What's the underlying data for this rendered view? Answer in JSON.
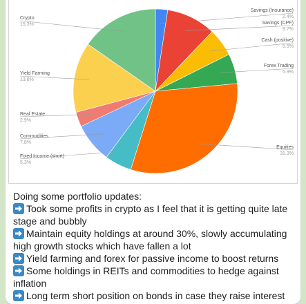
{
  "chart_data": {
    "type": "pie",
    "slices": [
      {
        "label": "Savings (Insurance)",
        "value": 2.4,
        "display": "2.4%",
        "color": "#4285f4"
      },
      {
        "label": "Savings (CPF)",
        "value": 9.7,
        "display": "9.7%",
        "color": "#ea4335"
      },
      {
        "label": "Cash (positive)",
        "value": 5.5,
        "display": "5.5%",
        "color": "#fbbc04"
      },
      {
        "label": "Forex Trading",
        "value": 5.9,
        "display": "5.9%",
        "color": "#34a853"
      },
      {
        "label": "Equities",
        "value": 31.3,
        "display": "31.3%",
        "color": "#ff6d01"
      },
      {
        "label": "Fixed Income (short)",
        "value": 5.3,
        "display": "5.3%",
        "color": "#46bdc6"
      },
      {
        "label": "Commodities",
        "value": 7.8,
        "display": "7.8%",
        "color": "#7baaf7"
      },
      {
        "label": "Real Estate",
        "value": 2.9,
        "display": "2.9%",
        "color": "#f07b72"
      },
      {
        "label": "Yield Farming",
        "value": 13.8,
        "display": "13.8%",
        "color": "#fcd04f"
      },
      {
        "label": "Crypto",
        "value": 15.3,
        "display": "15.3%",
        "color": "#71c287"
      }
    ]
  },
  "message": {
    "intro": "Doing some portfolio updates:",
    "bullets": [
      "Took some profits in crypto as I feel that it is getting quite late stage and bubbly",
      "Maintain equity holdings at around 30%, slowly accumulating high growth stocks which have fallen a lot",
      "Yield farming and forex for passive income to boost returns",
      "Some holdings in REITs and commodities to hedge against inflation",
      "Long term short position on bonds in case they raise interest"
    ],
    "bullet_icon": "right-arrow-emoji-icon"
  }
}
